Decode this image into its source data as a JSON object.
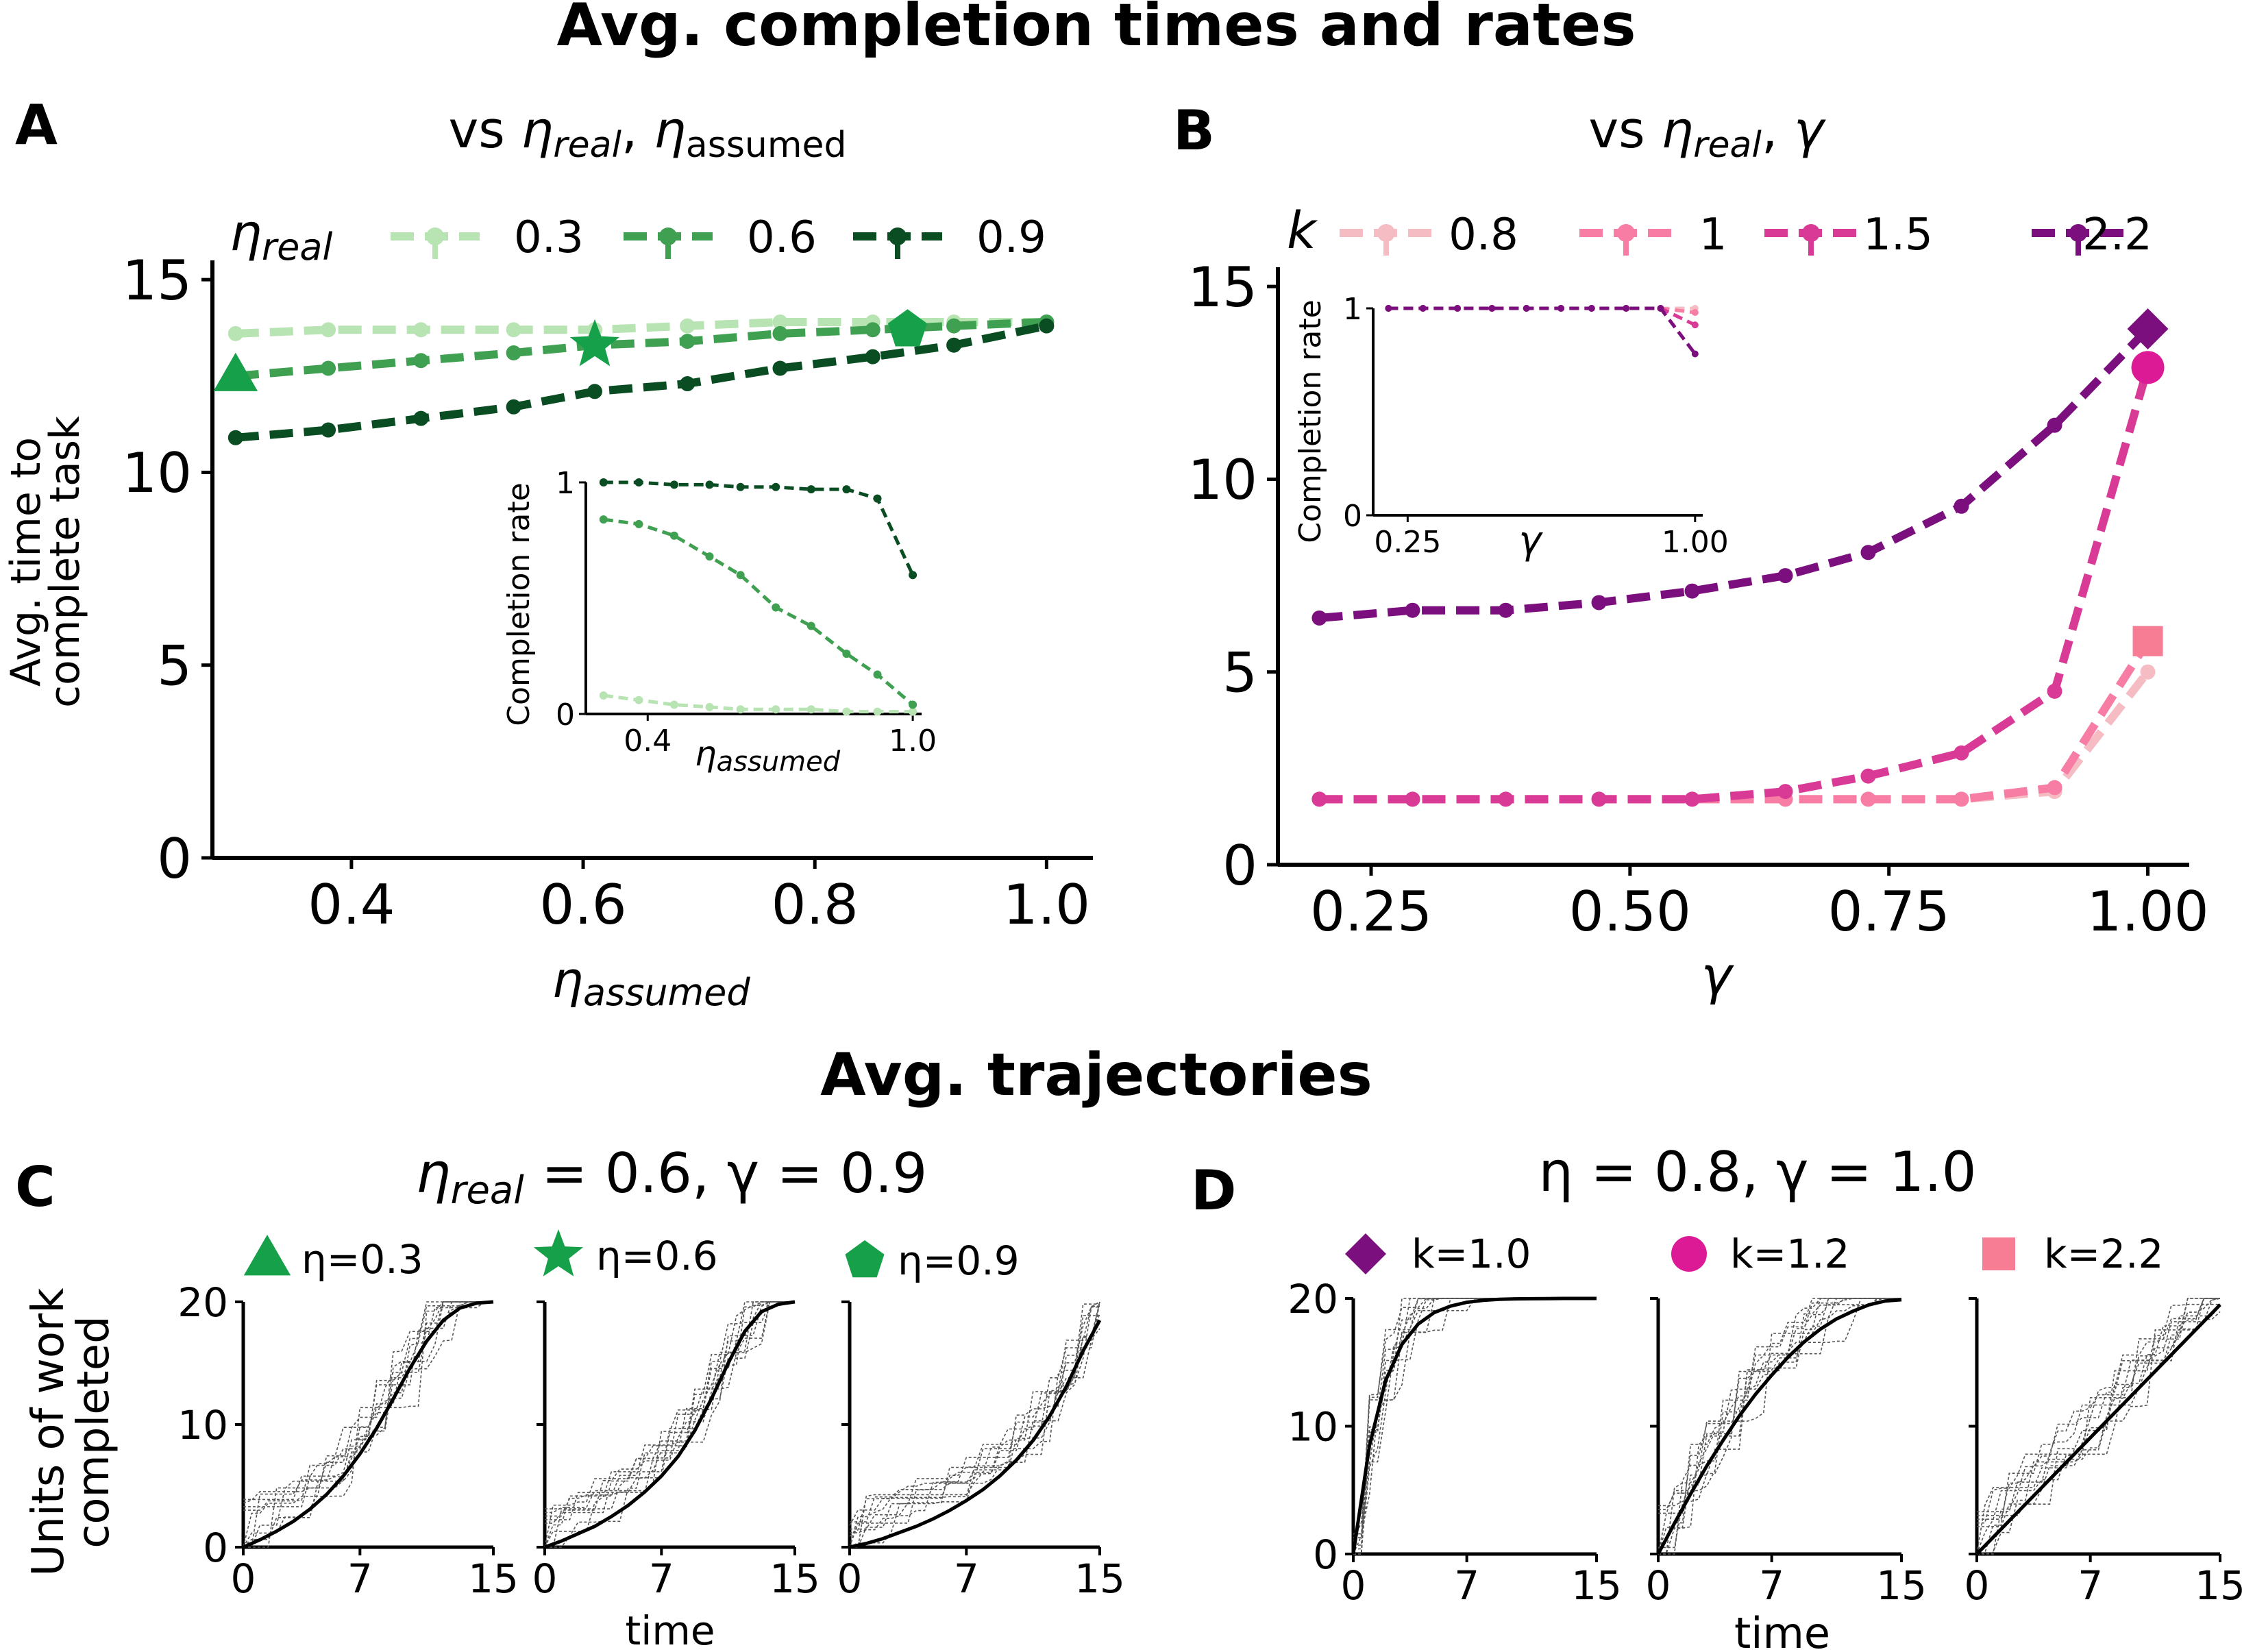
{
  "titles": {
    "top": "Avg. completion times and rates",
    "bottom": "Avg. trajectories"
  },
  "colors": {
    "eta03": "#b8e3b3",
    "eta06": "#3fa052",
    "eta09": "#0b4d22",
    "k08": "#f5bcc4",
    "k1": "#f77da5",
    "k15": "#d93a96",
    "k22": "#7b0f7e",
    "markerA": "#16a04a",
    "markerD_diamond": "#7b0f7e",
    "markerD_circle": "#dd1a96",
    "markerD_square": "#f77d95"
  },
  "panelA": {
    "letter": "A",
    "title_prefix": "vs ",
    "title_eta": "η",
    "title_sub1": "real",
    "title_sep": ", ",
    "title_sub2": "assumed",
    "legend_title": "η",
    "legend_title_sub": "real",
    "legend_labels": [
      "0.3",
      "0.6",
      "0.9"
    ],
    "ylabel_line1": "Avg. time to",
    "ylabel_line2": "complete task",
    "xlabel": "η",
    "xlabel_sub": "assumed",
    "xticks": [
      "0.4",
      "0.6",
      "0.8",
      "1.0"
    ],
    "yticks": [
      "0",
      "5",
      "10",
      "15"
    ],
    "inset": {
      "ylabel": "Completion rate",
      "xlabel": "η",
      "xlabel_sub": "assumed",
      "xticks": [
        "0.4",
        "1.0"
      ],
      "yticks": [
        "0",
        "1"
      ]
    }
  },
  "panelB": {
    "letter": "B",
    "title_prefix": "vs ",
    "title_eta": "η",
    "title_sub": "real",
    "title_sep": ", ",
    "title_gamma": "γ",
    "legend_title": "k",
    "legend_labels": [
      "0.8",
      "1",
      "1.5",
      "2.2"
    ],
    "xlabel": "γ",
    "xticks": [
      "0.25",
      "0.50",
      "0.75",
      "1.00"
    ],
    "yticks": [
      "0",
      "5",
      "10",
      "15"
    ],
    "inset": {
      "ylabel": "Completion rate",
      "xlabel": "γ",
      "xticks": [
        "0.25",
        "1.00"
      ],
      "yticks": [
        "0",
        "1"
      ]
    }
  },
  "panelC": {
    "letter": "C",
    "title_eta": "η",
    "title_sub": "real",
    "title_rest": " = 0.6, γ = 0.9",
    "legend_labels": [
      "η=0.3",
      "η=0.6",
      "η=0.9"
    ],
    "ylabel_line1": "Units of work",
    "ylabel_line2": "completed",
    "xlabel": "time",
    "xticks": [
      "0",
      "7",
      "15"
    ],
    "yticks": [
      "0",
      "10",
      "20"
    ]
  },
  "panelD": {
    "letter": "D",
    "title": "η = 0.8, γ = 1.0",
    "legend_labels": [
      "k=1.0",
      "k=1.2",
      "k=2.2"
    ],
    "xlabel": "time",
    "xticks": [
      "0",
      "7",
      "15"
    ],
    "yticks": [
      "0",
      "10",
      "20"
    ]
  },
  "chart_data": [
    {
      "type": "line",
      "panel": "A",
      "x": [
        0.3,
        0.38,
        0.46,
        0.54,
        0.61,
        0.69,
        0.77,
        0.85,
        0.92,
        1.0
      ],
      "series": [
        {
          "name": "0.3",
          "values": [
            13.6,
            13.7,
            13.7,
            13.7,
            13.7,
            13.8,
            13.9,
            13.9,
            13.9,
            13.9
          ]
        },
        {
          "name": "0.6",
          "values": [
            12.5,
            12.7,
            12.9,
            13.1,
            13.3,
            13.4,
            13.6,
            13.7,
            13.8,
            13.9
          ]
        },
        {
          "name": "0.9",
          "values": [
            10.9,
            11.1,
            11.4,
            11.7,
            12.1,
            12.3,
            12.7,
            13.0,
            13.3,
            13.8
          ]
        }
      ],
      "highlight_markers": [
        {
          "shape": "triangle",
          "x": 0.3,
          "y": 12.5
        },
        {
          "shape": "star",
          "x": 0.61,
          "y": 13.3
        },
        {
          "shape": "pentagon",
          "x": 0.88,
          "y": 13.7
        }
      ],
      "xlim": [
        0.28,
        1.04
      ],
      "ylim": [
        0,
        15.5
      ],
      "inset": {
        "x": [
          0.3,
          0.38,
          0.46,
          0.54,
          0.61,
          0.69,
          0.77,
          0.85,
          0.92,
          1.0
        ],
        "series": [
          {
            "name": "0.3",
            "values": [
              0.08,
              0.06,
              0.04,
              0.03,
              0.02,
              0.02,
              0.02,
              0.01,
              0.01,
              0.01
            ]
          },
          {
            "name": "0.6",
            "values": [
              0.84,
              0.82,
              0.77,
              0.68,
              0.6,
              0.46,
              0.38,
              0.26,
              0.17,
              0.04
            ]
          },
          {
            "name": "0.9",
            "values": [
              1.0,
              1.0,
              0.99,
              0.99,
              0.98,
              0.98,
              0.97,
              0.97,
              0.93,
              0.6
            ]
          }
        ],
        "ylim": [
          0,
          1
        ]
      }
    },
    {
      "type": "line",
      "panel": "B",
      "x": [
        0.2,
        0.29,
        0.38,
        0.47,
        0.56,
        0.65,
        0.73,
        0.82,
        0.91,
        1.0
      ],
      "series": [
        {
          "name": "0.8",
          "values": [
            1.7,
            1.7,
            1.7,
            1.7,
            1.7,
            1.7,
            1.7,
            1.7,
            1.9,
            5.0
          ]
        },
        {
          "name": "1",
          "values": [
            1.7,
            1.7,
            1.7,
            1.7,
            1.7,
            1.7,
            1.7,
            1.7,
            2.0,
            5.8
          ]
        },
        {
          "name": "1.5",
          "values": [
            1.7,
            1.7,
            1.7,
            1.7,
            1.7,
            1.9,
            2.3,
            2.9,
            4.5,
            12.9
          ]
        },
        {
          "name": "2.2",
          "values": [
            6.4,
            6.6,
            6.6,
            6.8,
            7.1,
            7.5,
            8.1,
            9.3,
            11.4,
            13.9
          ]
        }
      ],
      "highlight_markers": [
        {
          "shape": "diamond",
          "x": 1.0,
          "y": 13.9
        },
        {
          "shape": "circle",
          "x": 1.0,
          "y": 12.9
        },
        {
          "shape": "square",
          "x": 1.0,
          "y": 5.8
        }
      ],
      "xlim": [
        0.16,
        1.04
      ],
      "ylim": [
        0,
        15.5
      ],
      "inset": {
        "x": [
          0.2,
          0.29,
          0.38,
          0.47,
          0.56,
          0.65,
          0.73,
          0.82,
          0.91,
          1.0
        ],
        "series": [
          {
            "name": "0.8",
            "values": [
              1,
              1,
              1,
              1,
              1,
              1,
              1,
              1,
              1,
              1
            ]
          },
          {
            "name": "1",
            "values": [
              1,
              1,
              1,
              1,
              1,
              1,
              1,
              1,
              1,
              0.98
            ]
          },
          {
            "name": "1.5",
            "values": [
              1,
              1,
              1,
              1,
              1,
              1,
              1,
              1,
              1,
              0.92
            ]
          },
          {
            "name": "2.2",
            "values": [
              1,
              1,
              1,
              1,
              1,
              1,
              1,
              1,
              1,
              0.78
            ]
          }
        ],
        "ylim": [
          0,
          1
        ]
      }
    },
    {
      "type": "line",
      "panel": "C",
      "subplots": [
        {
          "label": "η=0.3",
          "mean_x": [
            0,
            1,
            2,
            3,
            4,
            5,
            6,
            7,
            8,
            9,
            10,
            11,
            12,
            13,
            14,
            15
          ],
          "mean_y": [
            0,
            0.6,
            1.3,
            2.1,
            3.1,
            4.3,
            5.8,
            7.6,
            9.7,
            12.1,
            14.6,
            16.8,
            18.5,
            19.5,
            19.9,
            20
          ]
        },
        {
          "label": "η=0.6",
          "mean_x": [
            0,
            1,
            2,
            3,
            4,
            5,
            6,
            7,
            8,
            9,
            10,
            11,
            12,
            13,
            14,
            15
          ],
          "mean_y": [
            0,
            0.5,
            1.1,
            1.7,
            2.5,
            3.4,
            4.5,
            5.8,
            7.4,
            9.5,
            12.1,
            15.0,
            17.6,
            19.2,
            19.8,
            20
          ]
        },
        {
          "label": "η=0.9",
          "mean_x": [
            0,
            1,
            2,
            3,
            4,
            5,
            6,
            7,
            8,
            9,
            10,
            11,
            12,
            13,
            14,
            15
          ],
          "mean_y": [
            0,
            0.3,
            0.7,
            1.2,
            1.7,
            2.3,
            3.0,
            3.8,
            4.7,
            5.8,
            7.1,
            8.7,
            10.7,
            13.1,
            16.0,
            18.5
          ]
        }
      ],
      "xlim": [
        0,
        15
      ],
      "ylim": [
        0,
        20
      ]
    },
    {
      "type": "line",
      "panel": "D",
      "subplots": [
        {
          "label": "k=1.0",
          "mean_x": [
            0,
            1,
            2,
            3,
            4,
            5,
            6,
            7,
            8,
            9,
            10,
            11,
            12,
            13,
            14,
            15
          ],
          "mean_y": [
            0,
            8.5,
            13.6,
            16.4,
            18.0,
            18.9,
            19.4,
            19.7,
            19.85,
            19.93,
            19.97,
            19.98,
            19.99,
            20,
            20,
            20
          ]
        },
        {
          "label": "k=1.2",
          "mean_x": [
            0,
            1,
            2,
            3,
            4,
            5,
            6,
            7,
            8,
            9,
            10,
            11,
            12,
            13,
            14,
            15
          ],
          "mean_y": [
            0,
            2.4,
            4.7,
            6.9,
            8.9,
            10.8,
            12.5,
            14.0,
            15.4,
            16.6,
            17.6,
            18.4,
            19.0,
            19.5,
            19.8,
            19.9
          ]
        },
        {
          "label": "k=2.2",
          "mean_x": [
            0,
            1,
            2,
            3,
            4,
            5,
            6,
            7,
            8,
            9,
            10,
            11,
            12,
            13,
            14,
            15
          ],
          "mean_y": [
            0,
            1.3,
            2.6,
            3.9,
            5.2,
            6.5,
            7.8,
            9.1,
            10.4,
            11.7,
            13.0,
            14.3,
            15.6,
            16.9,
            18.2,
            19.5
          ]
        }
      ],
      "xlim": [
        0,
        15
      ],
      "ylim": [
        0,
        20
      ]
    }
  ]
}
